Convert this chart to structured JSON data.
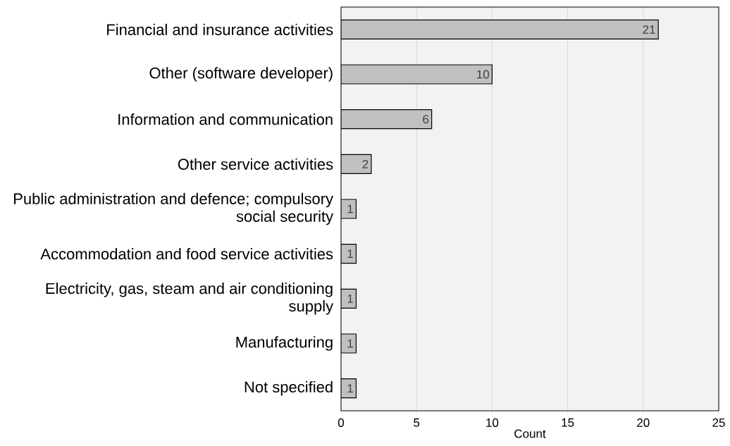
{
  "chart_data": {
    "type": "bar",
    "orientation": "horizontal",
    "xlabel": "Count",
    "categories": [
      "Financial and insurance activities",
      "Other (software developer)",
      "Information and communication",
      "Other service activities",
      "Public administration and defence; compulsory social security",
      "Accommodation and food service activities",
      "Electricity, gas, steam and air conditioning supply",
      "Manufacturing",
      "Not specified"
    ],
    "values": [
      21,
      10,
      6,
      2,
      1,
      1,
      1,
      1,
      1
    ],
    "color": "#c0c0c0",
    "xlim": [
      0,
      25
    ],
    "xticks": [
      0,
      5,
      10,
      15,
      20,
      25
    ],
    "grid": "x",
    "data_labels": true
  }
}
